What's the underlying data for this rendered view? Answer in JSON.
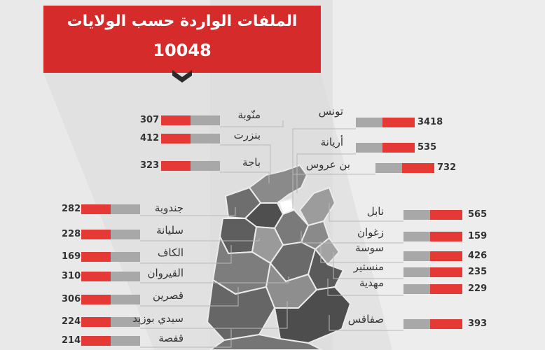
{
  "header": {
    "title": "الملفات الواردة حسب الولايات",
    "total": "10048"
  },
  "colors": {
    "accent": "#e53935",
    "header": "#d62b2b",
    "bar_gray": "#a8a8a8",
    "map_fill": "#7a7a7a"
  },
  "chart_data": {
    "type": "bar",
    "title": "الملفات الواردة حسب الولايات",
    "total": 10048,
    "categories": [
      "منّوبة",
      "بنزرت",
      "باجة",
      "جندوبة",
      "سليانة",
      "الكاف",
      "القيروان",
      "قصرين",
      "سيدي بوزيد",
      "قفصة",
      "تونس",
      "أريانة",
      "بن عروس",
      "نابل",
      "زغوان",
      "سوسة",
      "منستير",
      "مهدية",
      "صفاقس"
    ],
    "values": [
      307,
      412,
      323,
      282,
      228,
      169,
      310,
      306,
      224,
      214,
      3418,
      535,
      732,
      565,
      159,
      426,
      235,
      229,
      393
    ]
  },
  "left_labels": [
    {
      "name": "منّوبة",
      "value": "307"
    },
    {
      "name": "بنزرت",
      "value": "412"
    },
    {
      "name": "باجة",
      "value": "323"
    },
    {
      "name": "جندوبة",
      "value": "282"
    },
    {
      "name": "سليانة",
      "value": "228"
    },
    {
      "name": "الكاف",
      "value": "169"
    },
    {
      "name": "القيروان",
      "value": "310"
    },
    {
      "name": "قصرين",
      "value": "306"
    },
    {
      "name": "سيدي بوزيد",
      "value": "224"
    },
    {
      "name": "قفصة",
      "value": "214"
    }
  ],
  "right_labels": [
    {
      "name": "تونس",
      "value": "3418"
    },
    {
      "name": "أريانة",
      "value": "535"
    },
    {
      "name": "بن عروس",
      "value": "732"
    },
    {
      "name": "نابل",
      "value": "565"
    },
    {
      "name": "زغوان",
      "value": "159"
    },
    {
      "name": "سوسة",
      "value": "426"
    },
    {
      "name": "منستير",
      "value": "235"
    },
    {
      "name": "مهدية",
      "value": "229"
    },
    {
      "name": "صفاقس",
      "value": "393"
    }
  ]
}
